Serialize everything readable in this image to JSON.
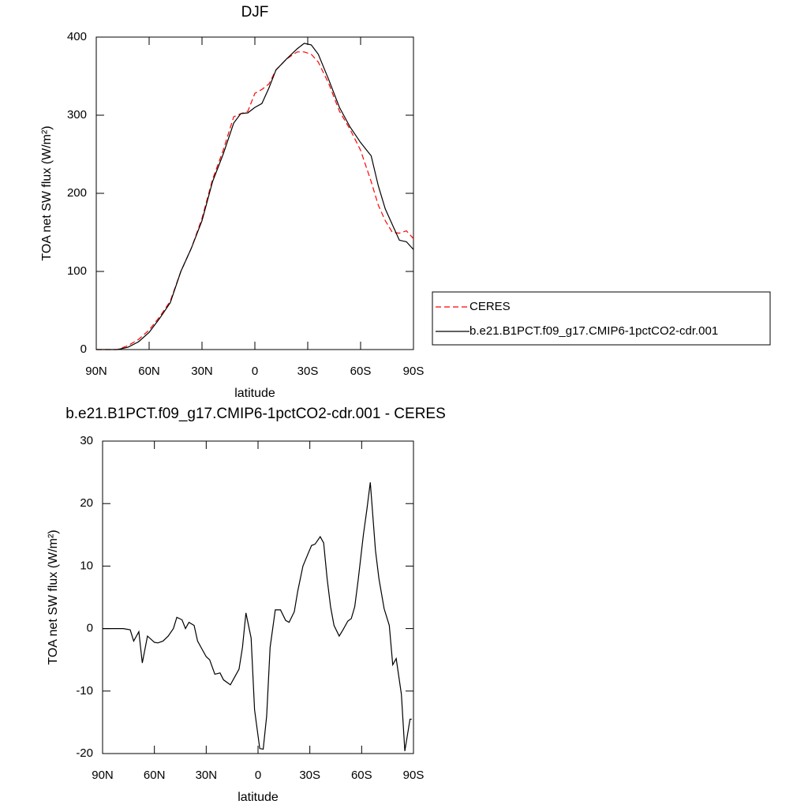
{
  "chart_data": [
    {
      "type": "line",
      "title": "DJF",
      "xlabel": "latitude",
      "ylabel": "TOA net SW flux (W/m²)",
      "xlim": [
        90,
        -90
      ],
      "ylim": [
        0,
        400
      ],
      "xticks": [
        {
          "value": 90,
          "label": "90N"
        },
        {
          "value": 60,
          "label": "60N"
        },
        {
          "value": 30,
          "label": "30N"
        },
        0,
        {
          "value": -30,
          "label": "30S"
        },
        {
          "value": -60,
          "label": "60S"
        },
        {
          "value": -90,
          "label": "90S"
        }
      ],
      "yticks": [
        0,
        100,
        200,
        300,
        400
      ],
      "legend": "right",
      "x": [
        90,
        78,
        72,
        66,
        60,
        54,
        48,
        42,
        36,
        30,
        24,
        18,
        12,
        8,
        4,
        0,
        -4,
        -8,
        -12,
        -18,
        -24,
        -28,
        -32,
        -36,
        -42,
        -48,
        -54,
        -60,
        -66,
        -70,
        -74,
        -78,
        -82,
        -86,
        -90
      ],
      "series": [
        {
          "name": "CERES",
          "color": "#ff0000",
          "dashed": true,
          "values": [
            0,
            0,
            5,
            13,
            25,
            42,
            62,
            100,
            130,
            168,
            218,
            255,
            298,
            302,
            305,
            328,
            333,
            340,
            358,
            372,
            381,
            381,
            378,
            368,
            340,
            305,
            282,
            255,
            215,
            185,
            165,
            150,
            149,
            152,
            142
          ]
        },
        {
          "name": "b.e21.B1PCT.f09_g17.CMIP6-1pctCO2-cdr.001",
          "color": "#000000",
          "dashed": false,
          "values": [
            0,
            0,
            3,
            10,
            22,
            40,
            60,
            100,
            130,
            165,
            215,
            250,
            290,
            302,
            303,
            310,
            315,
            335,
            358,
            372,
            385,
            392,
            390,
            378,
            345,
            310,
            285,
            265,
            248,
            210,
            180,
            160,
            140,
            138,
            128
          ]
        }
      ]
    },
    {
      "type": "line",
      "title": "b.e21.B1PCT.f09_g17.CMIP6-1pctCO2-cdr.001 - CERES",
      "xlabel": "latitude",
      "ylabel": "TOA net SW flux (W/m²)",
      "xlim": [
        90,
        -90
      ],
      "ylim": [
        -20,
        30
      ],
      "xticks": [
        {
          "value": 90,
          "label": "90N"
        },
        {
          "value": 60,
          "label": "60N"
        },
        {
          "value": 30,
          "label": "30N"
        },
        0,
        {
          "value": -30,
          "label": "30S"
        },
        {
          "value": -60,
          "label": "60S"
        },
        {
          "value": -90,
          "label": "90S"
        }
      ],
      "yticks": [
        -20,
        -10,
        0,
        10,
        20,
        30
      ],
      "x": [
        90,
        78,
        74,
        72,
        69,
        67,
        64,
        60,
        58,
        55,
        52,
        49,
        47,
        44,
        42,
        40,
        37,
        35,
        33,
        30,
        28,
        25,
        22,
        20,
        16,
        14,
        11,
        9,
        7,
        4,
        2,
        -1,
        -3,
        -5,
        -7,
        -10,
        -13,
        -16,
        -18,
        -21,
        -23,
        -26,
        -29,
        -31,
        -33,
        -36,
        -38,
        -40,
        -42,
        -44,
        -47,
        -49,
        -52,
        -54,
        -56,
        -58,
        -61,
        -63,
        -65,
        -68,
        -70,
        -73,
        -76,
        -78,
        -80,
        -83,
        -85,
        -88,
        -89
      ],
      "series": [
        {
          "color": "#000000",
          "dashed": false,
          "values": [
            0,
            0,
            -0.2,
            -2,
            -0.5,
            -5.5,
            -1.2,
            -2.2,
            -2.3,
            -2,
            -1.2,
            0,
            1.8,
            1.4,
            0,
            1,
            0.5,
            -2,
            -3,
            -4.5,
            -5,
            -7.3,
            -7.1,
            -8.2,
            -9,
            -8,
            -6.5,
            -3,
            2.5,
            -1.5,
            -13,
            -19.2,
            -19.3,
            -14,
            -3,
            3,
            3,
            1.3,
            1,
            2.7,
            6,
            10,
            12,
            13.3,
            13.5,
            14.7,
            13.7,
            8,
            3.5,
            0.5,
            -1.2,
            -0.3,
            1.2,
            1.6,
            3.5,
            7.8,
            15,
            19,
            23.4,
            12.5,
            8,
            3.2,
            0.5,
            -5.8,
            -4.8,
            -10.5,
            -19.6,
            -14.5,
            -14.5
          ]
        }
      ]
    }
  ]
}
